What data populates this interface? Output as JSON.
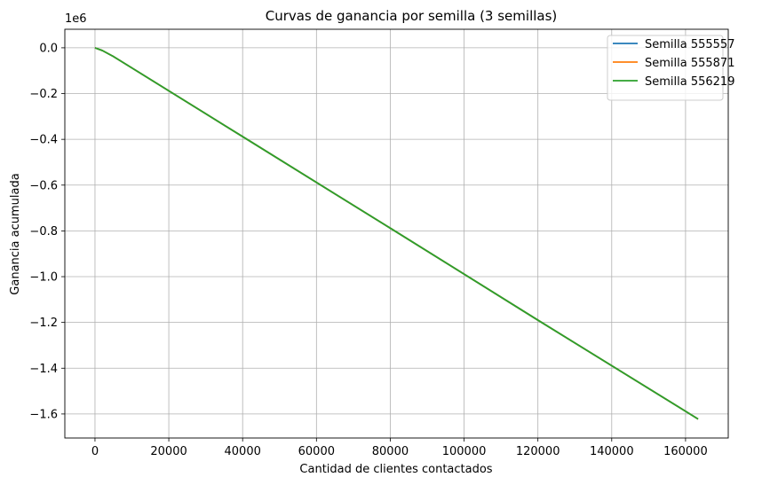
{
  "chart_data": {
    "type": "line",
    "title": "Curvas de ganancia por semilla (3 semillas)",
    "xlabel": "Cantidad de clientes contactados",
    "ylabel": "Ganancia acumulada",
    "y_offset_text": "1e6",
    "y_scale_factor": 1000000,
    "xlim": [
      -8170,
      171570
    ],
    "ylim": [
      -1.705,
      0.081
    ],
    "x_ticks": [
      0,
      20000,
      40000,
      60000,
      80000,
      100000,
      120000,
      140000,
      160000
    ],
    "x_tick_labels": [
      "0",
      "20000",
      "40000",
      "60000",
      "80000",
      "100000",
      "120000",
      "140000",
      "160000"
    ],
    "y_ticks": [
      0.0,
      -0.2,
      -0.4,
      -0.6,
      -0.8,
      -1.0,
      -1.2,
      -1.4,
      -1.6
    ],
    "y_tick_labels": [
      "0.0",
      "−0.2",
      "−0.4",
      "−0.6",
      "−0.8",
      "−1.0",
      "−1.2",
      "−1.4",
      "−1.6"
    ],
    "grid": true,
    "legend_position": "top-right",
    "series": [
      {
        "name": "Semilla 555557",
        "color": "#1f77b4",
        "points": [
          [
            0,
            0.0
          ],
          [
            2000,
            -0.012
          ],
          [
            5000,
            -0.038
          ],
          [
            10000,
            -0.088
          ],
          [
            40000,
            -0.388
          ],
          [
            80000,
            -0.788
          ],
          [
            120000,
            -1.19
          ],
          [
            163400,
            -1.622
          ]
        ]
      },
      {
        "name": "Semilla 555871",
        "color": "#ff7f0e",
        "points": [
          [
            0,
            0.0
          ],
          [
            2000,
            -0.012
          ],
          [
            5000,
            -0.038
          ],
          [
            10000,
            -0.088
          ],
          [
            40000,
            -0.388
          ],
          [
            80000,
            -0.788
          ],
          [
            120000,
            -1.19
          ],
          [
            163400,
            -1.622
          ]
        ]
      },
      {
        "name": "Semilla 556219",
        "color": "#2ca02c",
        "points": [
          [
            0,
            0.0
          ],
          [
            2000,
            -0.012
          ],
          [
            5000,
            -0.038
          ],
          [
            10000,
            -0.088
          ],
          [
            40000,
            -0.388
          ],
          [
            80000,
            -0.788
          ],
          [
            120000,
            -1.19
          ],
          [
            163400,
            -1.622
          ]
        ]
      }
    ]
  }
}
